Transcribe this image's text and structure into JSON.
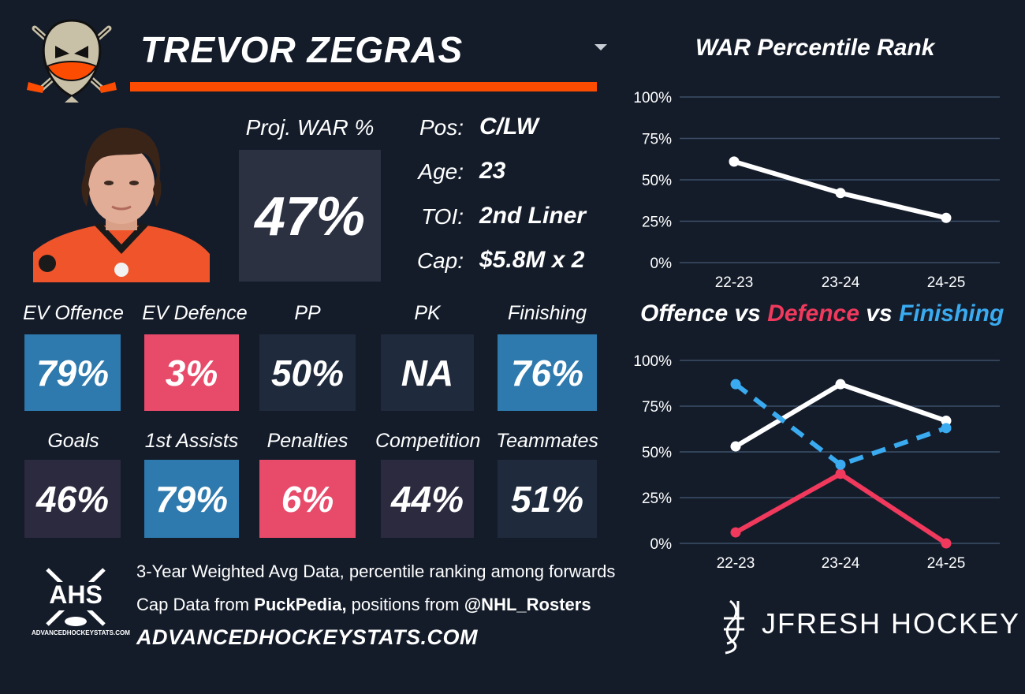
{
  "header": {
    "player_name": "TREVOR ZEGRAS"
  },
  "proj_war": {
    "label": "Proj. WAR %",
    "value": "47%"
  },
  "info": [
    {
      "label": "Pos:",
      "value": "C/LW"
    },
    {
      "label": "Age:",
      "value": "23"
    },
    {
      "label": "TOI:",
      "value": "2nd Liner"
    },
    {
      "label": "Cap:",
      "value": "$5.8M x 2"
    }
  ],
  "tiles_row1": [
    {
      "label": "EV Offence",
      "value": "79%",
      "color": "#2e79ad"
    },
    {
      "label": "EV Defence",
      "value": "3%",
      "color": "#e84a6a"
    },
    {
      "label": "PP",
      "value": "50%",
      "color": "#1f2a3c"
    },
    {
      "label": "PK",
      "value": "NA",
      "color": "#1f2a3c"
    },
    {
      "label": "Finishing",
      "value": "76%",
      "color": "#2e79ad"
    }
  ],
  "tiles_row2": [
    {
      "label": "Goals",
      "value": "46%",
      "color": "#2c2a3e"
    },
    {
      "label": "1st Assists",
      "value": "79%",
      "color": "#2e79ad"
    },
    {
      "label": "Penalties",
      "value": "6%",
      "color": "#e84a6a"
    },
    {
      "label": "Competition",
      "value": "44%",
      "color": "#2c2a3e"
    },
    {
      "label": "Teammates",
      "value": "51%",
      "color": "#1f2a3c"
    }
  ],
  "chart1": {
    "title": "WAR Percentile Rank"
  },
  "chart2": {
    "title_offence": "Offence",
    "title_vs1": " vs ",
    "title_defence": "Defence",
    "title_vs2": " vs ",
    "title_finishing": "Finishing"
  },
  "chart_data": [
    {
      "type": "line",
      "title": "WAR Percentile Rank",
      "categories": [
        "22-23",
        "23-24",
        "24-25"
      ],
      "y_ticks": [
        "0%",
        "25%",
        "50%",
        "75%",
        "100%"
      ],
      "ylim": [
        0,
        100
      ],
      "grid": true,
      "series": [
        {
          "values": [
            61,
            42,
            27
          ],
          "color": "#ffffff",
          "style": "solid"
        }
      ]
    },
    {
      "type": "line",
      "title": "Offence vs Defence vs Finishing",
      "categories": [
        "22-23",
        "23-24",
        "24-25"
      ],
      "y_ticks": [
        "0%",
        "25%",
        "50%",
        "75%",
        "100%"
      ],
      "ylim": [
        0,
        100
      ],
      "grid": true,
      "series": [
        {
          "name": "Offence",
          "values": [
            53,
            87,
            67
          ],
          "color": "#ffffff",
          "style": "solid"
        },
        {
          "name": "Defence",
          "values": [
            6,
            38,
            0
          ],
          "color": "#f0395c",
          "style": "solid"
        },
        {
          "name": "Finishing",
          "values": [
            87,
            43,
            63
          ],
          "color": "#3aabf0",
          "style": "dashed"
        }
      ]
    }
  ],
  "footer": {
    "line1": "3-Year Weighted Avg Data, percentile ranking among forwards",
    "line2_a": "Cap Data from ",
    "line2_b": "PuckPedia,",
    "line2_c": " positions from ",
    "line2_d": "@NHL_Rosters",
    "site": "ADVANCEDHOCKEYSTATS.COM",
    "ahs_logo_text": "AHS",
    "ahs_small_text": "ADVANCEDHOCKEYSTATS.COM",
    "brand": "JFRESH HOCKEY"
  }
}
